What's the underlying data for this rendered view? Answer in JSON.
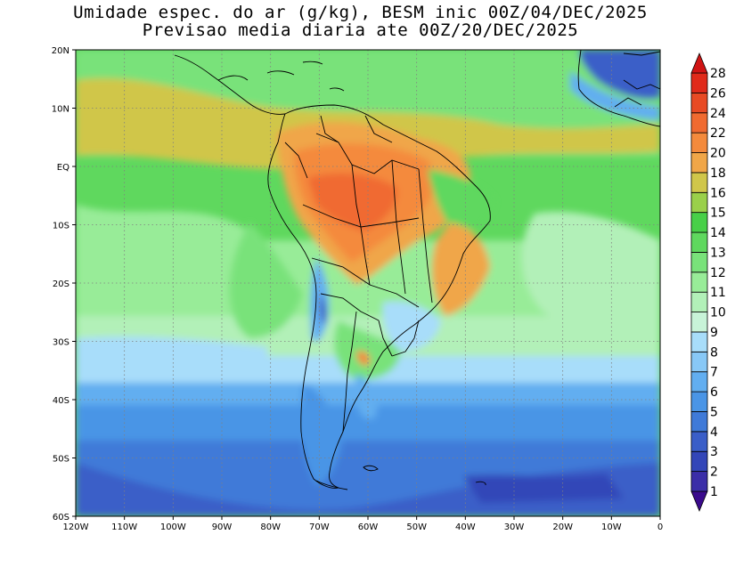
{
  "title_line1": "Umidade espec. do ar (g/kg), BESM inic 00Z/04/DEC/2025",
  "title_line2": "Previsao media diaria ate 00Z/20/DEC/2025",
  "map": {
    "lon_range": [
      -120,
      0
    ],
    "lat_range": [
      -60,
      20
    ],
    "lat_ticks": [
      {
        "value": 20,
        "label": "20N"
      },
      {
        "value": 10,
        "label": "10N"
      },
      {
        "value": 0,
        "label": "EQ"
      },
      {
        "value": -10,
        "label": "10S"
      },
      {
        "value": -20,
        "label": "20S"
      },
      {
        "value": -30,
        "label": "30S"
      },
      {
        "value": -40,
        "label": "40S"
      },
      {
        "value": -50,
        "label": "50S"
      },
      {
        "value": -60,
        "label": "60S"
      }
    ],
    "lon_ticks": [
      {
        "value": -120,
        "label": "120W"
      },
      {
        "value": -110,
        "label": "110W"
      },
      {
        "value": -100,
        "label": "100W"
      },
      {
        "value": -90,
        "label": "90W"
      },
      {
        "value": -80,
        "label": "80W"
      },
      {
        "value": -70,
        "label": "70W"
      },
      {
        "value": -60,
        "label": "60W"
      },
      {
        "value": -50,
        "label": "50W"
      },
      {
        "value": -40,
        "label": "40W"
      },
      {
        "value": -30,
        "label": "30W"
      },
      {
        "value": -20,
        "label": "20W"
      },
      {
        "value": -10,
        "label": "10W"
      },
      {
        "value": 0,
        "label": "0"
      }
    ],
    "grid": "dotted"
  },
  "colorbar": {
    "levels": [
      "1",
      "2",
      "3",
      "4",
      "5",
      "6",
      "7",
      "8",
      "9",
      "10",
      "11",
      "12",
      "13",
      "14",
      "15",
      "16",
      "18",
      "20",
      "22",
      "24",
      "26",
      "28"
    ],
    "colors": [
      "#3a0a8c",
      "#3b2ea8",
      "#3346b8",
      "#3a5ec8",
      "#3f7ad8",
      "#4a95e6",
      "#62aef0",
      "#88c8f6",
      "#a8ddfa",
      "#c8f3d8",
      "#b2f0b8",
      "#98ec98",
      "#79e27a",
      "#5fd85e",
      "#48d048",
      "#9ad04a",
      "#d0c64a",
      "#f0a648",
      "#f48a3c",
      "#f06a30",
      "#e84a24",
      "#e02a1a",
      "#d01414"
    ]
  }
}
